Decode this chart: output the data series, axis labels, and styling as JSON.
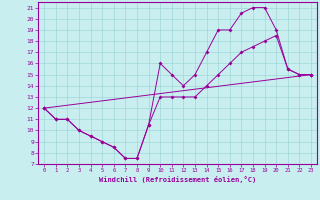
{
  "xlabel": "Windchill (Refroidissement éolien,°C)",
  "xlim": [
    -0.5,
    23.5
  ],
  "ylim": [
    7,
    21.5
  ],
  "yticks": [
    7,
    8,
    9,
    10,
    11,
    12,
    13,
    14,
    15,
    16,
    17,
    18,
    19,
    20,
    21
  ],
  "xticks": [
    0,
    1,
    2,
    3,
    4,
    5,
    6,
    7,
    8,
    9,
    10,
    11,
    12,
    13,
    14,
    15,
    16,
    17,
    18,
    19,
    20,
    21,
    22,
    23
  ],
  "bg_color": "#c8eef0",
  "line_color": "#990099",
  "grid_color": "#a0d8d8",
  "line1_x": [
    0,
    1,
    2,
    3,
    4,
    5,
    6,
    7,
    8,
    9,
    10,
    11,
    12,
    13,
    14,
    15,
    16,
    17,
    18,
    19,
    20,
    21,
    22,
    23
  ],
  "line1_y": [
    12,
    11,
    11,
    10,
    9.5,
    9,
    8.5,
    7.5,
    7.5,
    10.5,
    16,
    15,
    14,
    15,
    17,
    19,
    19,
    20.5,
    21,
    21,
    19,
    15.5,
    15,
    15
  ],
  "line2_x": [
    0,
    1,
    2,
    3,
    4,
    5,
    6,
    7,
    8,
    9,
    10,
    11,
    12,
    13,
    14,
    15,
    16,
    17,
    18,
    19,
    20,
    21,
    22,
    23
  ],
  "line2_y": [
    12,
    11,
    11,
    10,
    9.5,
    9,
    8.5,
    7.5,
    7.5,
    10.5,
    13,
    13,
    13,
    13,
    14,
    15,
    16,
    17,
    17.5,
    18,
    18.5,
    15.5,
    15,
    15
  ],
  "line3_x": [
    0,
    23
  ],
  "line3_y": [
    12,
    15
  ]
}
